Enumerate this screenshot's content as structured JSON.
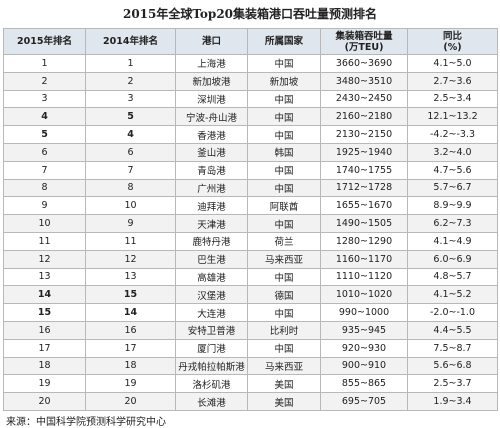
{
  "title": "2015年全球Top20集装箱港口吞吐量预测排名",
  "table": {
    "headers": [
      [
        "2015年排名"
      ],
      [
        "2014年排名"
      ],
      [
        "港口"
      ],
      [
        "所属国家"
      ],
      [
        "集装箱吞吐量",
        "(万TEU)"
      ],
      [
        "同比",
        "(%)"
      ]
    ],
    "rows": [
      [
        "1",
        "1",
        "上海港",
        "中国",
        "3660~3690",
        "4.1~5.0"
      ],
      [
        "2",
        "2",
        "新加坡港",
        "新加坡",
        "3480~3510",
        "2.7~3.6"
      ],
      [
        "3",
        "3",
        "深圳港",
        "中国",
        "2430~2450",
        "2.5~3.4"
      ],
      [
        "4",
        "5",
        "宁波-舟山港",
        "中国",
        "2160~2180",
        "12.1~13.2"
      ],
      [
        "5",
        "4",
        "香港港",
        "中国",
        "2130~2150",
        "-4.2~-3.3"
      ],
      [
        "6",
        "6",
        "釜山港",
        "韩国",
        "1925~1940",
        "3.2~4.0"
      ],
      [
        "7",
        "7",
        "青岛港",
        "中国",
        "1740~1755",
        "4.7~5.6"
      ],
      [
        "8",
        "8",
        "广州港",
        "中国",
        "1712~1728",
        "5.7~6.7"
      ],
      [
        "9",
        "10",
        "迪拜港",
        "阿联酋",
        "1655~1670",
        "8.9~9.9"
      ],
      [
        "10",
        "9",
        "天津港",
        "中国",
        "1490~1505",
        "6.2~7.3"
      ],
      [
        "11",
        "11",
        "鹿特丹港",
        "荷兰",
        "1280~1290",
        "4.1~4.9"
      ],
      [
        "12",
        "12",
        "巴生港",
        "马来西亚",
        "1160~1170",
        "6.0~6.9"
      ],
      [
        "13",
        "13",
        "高雄港",
        "中国",
        "1110~1120",
        "4.8~5.7"
      ],
      [
        "14",
        "15",
        "汉堡港",
        "德国",
        "1010~1020",
        "4.1~5.2"
      ],
      [
        "15",
        "14",
        "大连港",
        "中国",
        "990~1000",
        "-2.0~-1.0"
      ],
      [
        "16",
        "16",
        "安特卫普港",
        "比利时",
        "935~945",
        "4.4~5.5"
      ],
      [
        "17",
        "17",
        "厦门港",
        "中国",
        "920~930",
        "7.5~8.7"
      ],
      [
        "18",
        "18",
        "丹戎帕拉帕斯港",
        "马来西亚",
        "900~910",
        "5.6~6.8"
      ],
      [
        "19",
        "19",
        "洛杉矶港",
        "美国",
        "855~865",
        "2.5~3.7"
      ],
      [
        "20",
        "20",
        "长滩港",
        "美国",
        "695~705",
        "1.9~3.4"
      ]
    ]
  },
  "footer": "来源：中国科学院预测科学研究中心"
}
